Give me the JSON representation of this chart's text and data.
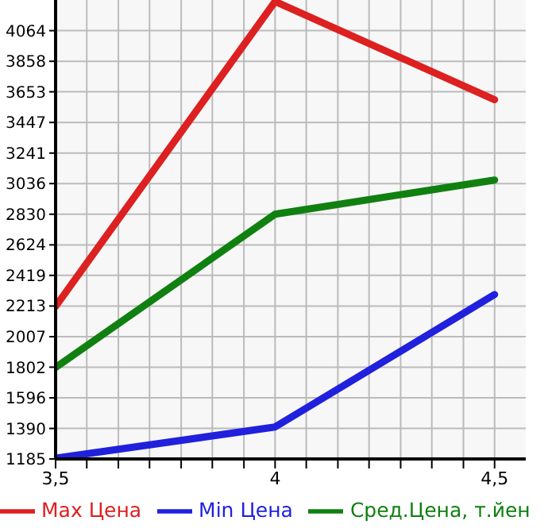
{
  "chart_data": {
    "type": "line",
    "x": [
      3.5,
      4,
      4.5
    ],
    "series": [
      {
        "name": "Max Цена",
        "color": "#dd2020",
        "values": [
          2210,
          4260,
          3600
        ]
      },
      {
        "name": "Min Цена",
        "color": "#2020dd",
        "values": [
          1190,
          1400,
          2290
        ]
      },
      {
        "name": "Сред.Цена, т.йен",
        "color": "#108010",
        "values": [
          1800,
          2830,
          3060
        ]
      }
    ],
    "xlim": [
      3.5,
      4.571
    ],
    "xticks": [
      {
        "value": 3.5,
        "label": "3,5"
      },
      {
        "value": 3.571,
        "label": null
      },
      {
        "value": 3.643,
        "label": null
      },
      {
        "value": 3.714,
        "label": null
      },
      {
        "value": 3.786,
        "label": null
      },
      {
        "value": 3.857,
        "label": null
      },
      {
        "value": 3.929,
        "label": null
      },
      {
        "value": 4,
        "label": "4"
      },
      {
        "value": 4.071,
        "label": null
      },
      {
        "value": 4.143,
        "label": null
      },
      {
        "value": 4.214,
        "label": null
      },
      {
        "value": 4.286,
        "label": null
      },
      {
        "value": 4.357,
        "label": null
      },
      {
        "value": 4.429,
        "label": null
      },
      {
        "value": 4.5,
        "label": "4,5"
      }
    ],
    "ylim": [
      1185,
      4270
    ],
    "yticks": [
      1185,
      1390,
      1596,
      1802,
      2007,
      2213,
      2419,
      2624,
      2830,
      3036,
      3241,
      3447,
      3653,
      3858,
      4064
    ],
    "grid": true,
    "legend": "bottom"
  }
}
